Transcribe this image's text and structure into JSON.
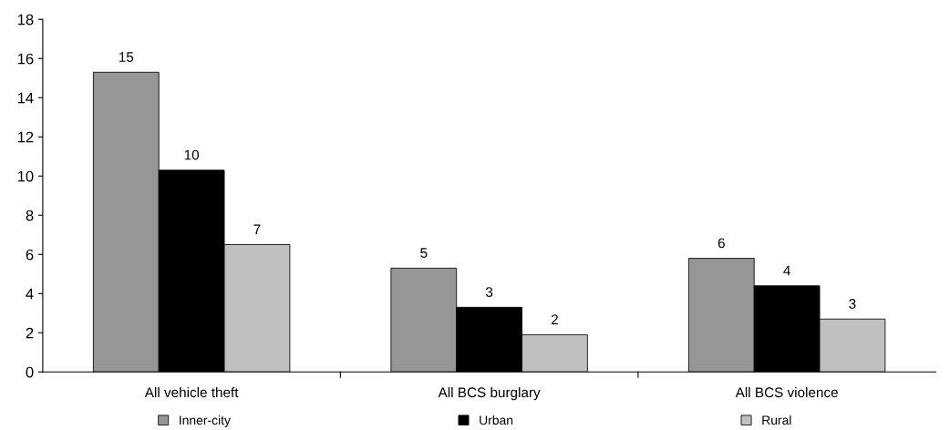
{
  "chart_data": {
    "type": "bar",
    "categories": [
      "All vehicle theft",
      "All BCS burglary",
      "All BCS violence"
    ],
    "series": [
      {
        "name": "Inner-city",
        "color": "#969696",
        "values": [
          15.3,
          5.3,
          5.8
        ],
        "value_labels": [
          "15",
          "5",
          "6"
        ]
      },
      {
        "name": "Urban",
        "color": "#000000",
        "values": [
          10.3,
          3.3,
          4.4
        ],
        "value_labels": [
          "10",
          "3",
          "4"
        ]
      },
      {
        "name": "Rural",
        "color": "#c0c0c0",
        "values": [
          6.5,
          1.9,
          2.7
        ],
        "value_labels": [
          "7",
          "2",
          "3"
        ]
      }
    ],
    "ylim": [
      0,
      18
    ],
    "yticks": [
      0,
      2,
      4,
      6,
      8,
      10,
      12,
      14,
      16,
      18
    ],
    "grid": false,
    "legend": "bottom"
  }
}
